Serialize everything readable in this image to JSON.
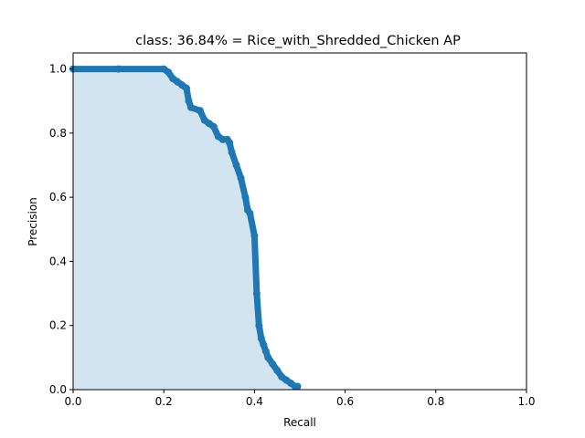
{
  "chart_data": {
    "type": "area",
    "title": "class: 36.84% = Rice_with_Shredded_Chicken AP",
    "xlabel": "Recall",
    "ylabel": "Precision",
    "xlim": [
      0,
      1
    ],
    "ylim": [
      0,
      1.05
    ],
    "x_ticks": [
      "0.0",
      "0.2",
      "0.4",
      "0.6",
      "0.8",
      "1.0"
    ],
    "y_ticks": [
      "0.0",
      "0.2",
      "0.4",
      "0.6",
      "0.8",
      "1.0"
    ],
    "grid": false,
    "legend": "none",
    "colors": {
      "line": "#1f77b4",
      "fill": "#1f77b4",
      "fill_opacity": 0.2
    },
    "series": [
      {
        "x": [
          0.0,
          0.1,
          0.2,
          0.21,
          0.22,
          0.23,
          0.24,
          0.25,
          0.255,
          0.26,
          0.28,
          0.29,
          0.3,
          0.31,
          0.32,
          0.33,
          0.34,
          0.345,
          0.35,
          0.36,
          0.37,
          0.38,
          0.385,
          0.39,
          0.4,
          0.405,
          0.41,
          0.415,
          0.42,
          0.425,
          0.43,
          0.44,
          0.45,
          0.46,
          0.47,
          0.48,
          0.49,
          0.495
        ],
        "y": [
          1.0,
          1.0,
          1.0,
          0.99,
          0.97,
          0.96,
          0.95,
          0.94,
          0.9,
          0.88,
          0.87,
          0.84,
          0.83,
          0.82,
          0.79,
          0.78,
          0.78,
          0.77,
          0.74,
          0.7,
          0.66,
          0.6,
          0.56,
          0.55,
          0.48,
          0.3,
          0.2,
          0.16,
          0.14,
          0.12,
          0.1,
          0.08,
          0.06,
          0.04,
          0.03,
          0.02,
          0.01,
          0.01
        ]
      }
    ]
  }
}
